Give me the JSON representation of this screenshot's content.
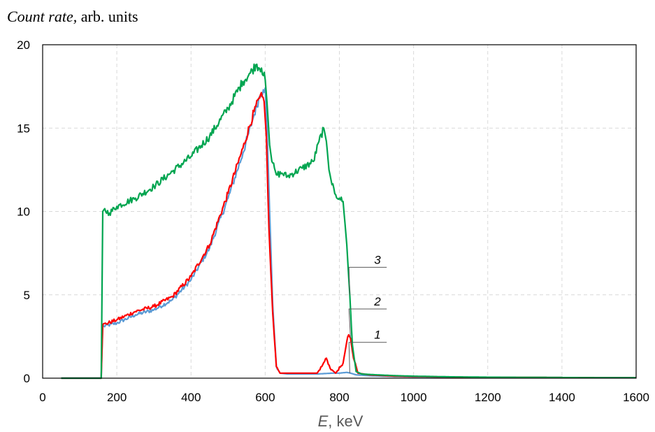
{
  "chart_data": {
    "type": "line",
    "ylabel_italic": "Count rate,",
    "ylabel_rest": " arb. units",
    "xlabel_italic": "E",
    "xlabel_rest": ", keV",
    "xlim": [
      0,
      1600
    ],
    "ylim": [
      0,
      20
    ],
    "xticks": [
      0,
      200,
      400,
      600,
      800,
      1000,
      1200,
      1400,
      1600
    ],
    "yticks": [
      0,
      5,
      10,
      15,
      20
    ],
    "grid": true,
    "series": [
      {
        "name": "1",
        "color": "#5B9BD5",
        "x": [
          50,
          158,
          162,
          200,
          250,
          300,
          350,
          400,
          450,
          500,
          540,
          570,
          585,
          595,
          600,
          605,
          612,
          620,
          630,
          640,
          660,
          700,
          740,
          780,
          800,
          820,
          830,
          845,
          880,
          950,
          1000,
          1100,
          1200,
          1300,
          1400,
          1500,
          1600
        ],
        "y": [
          0,
          0,
          3.1,
          3.3,
          3.8,
          4.1,
          4.7,
          5.9,
          7.8,
          10.8,
          13.5,
          15.8,
          16.9,
          17.3,
          17.4,
          15.0,
          10.0,
          4.5,
          0.7,
          0.3,
          0.25,
          0.25,
          0.25,
          0.3,
          0.3,
          0.35,
          0.3,
          0.2,
          0.15,
          0.1,
          0.08,
          0.06,
          0.05,
          0.04,
          0.04,
          0.03,
          0.03
        ]
      },
      {
        "name": "2",
        "color": "#FF0000",
        "x": [
          50,
          158,
          162,
          200,
          250,
          300,
          350,
          400,
          450,
          500,
          540,
          570,
          585,
          592,
          597,
          603,
          610,
          620,
          630,
          640,
          700,
          740,
          755,
          765,
          775,
          790,
          810,
          820,
          825,
          830,
          838,
          850,
          880,
          950,
          1000,
          1100,
          1200,
          1300,
          1400,
          1500,
          1600
        ],
        "y": [
          0,
          0,
          3.2,
          3.5,
          4.0,
          4.3,
          4.9,
          6.1,
          8.0,
          11.1,
          13.8,
          16.0,
          16.8,
          16.9,
          16.6,
          14.5,
          9.0,
          4.0,
          0.7,
          0.3,
          0.3,
          0.3,
          0.8,
          1.2,
          0.6,
          0.3,
          0.9,
          2.2,
          2.6,
          2.4,
          1.2,
          0.3,
          0.2,
          0.12,
          0.1,
          0.07,
          0.05,
          0.05,
          0.04,
          0.03,
          0.03
        ]
      },
      {
        "name": "3",
        "color": "#00A550",
        "x": [
          50,
          158,
          162,
          165,
          180,
          200,
          250,
          300,
          350,
          400,
          450,
          500,
          540,
          560,
          575,
          590,
          600,
          605,
          612,
          618,
          625,
          630,
          645,
          660,
          700,
          730,
          745,
          758,
          765,
          772,
          780,
          790,
          800,
          810,
          820,
          828,
          835,
          845,
          860,
          900,
          950,
          1000,
          1100,
          1200,
          1300,
          1400,
          1500,
          1600
        ],
        "y": [
          0,
          0,
          10.0,
          10.1,
          9.9,
          10.3,
          10.8,
          11.5,
          12.4,
          13.3,
          14.5,
          16.2,
          17.8,
          18.3,
          18.8,
          18.6,
          17.9,
          16.5,
          14.0,
          13.0,
          12.6,
          12.2,
          12.3,
          12.1,
          12.6,
          13.0,
          14.2,
          15.0,
          14.2,
          12.5,
          11.6,
          11.0,
          10.8,
          10.6,
          8.0,
          5.0,
          2.0,
          0.4,
          0.25,
          0.2,
          0.15,
          0.12,
          0.08,
          0.06,
          0.05,
          0.04,
          0.03,
          0.03
        ]
      }
    ],
    "curve_labels": [
      {
        "text": "1",
        "series": 0,
        "anchor_x": 828,
        "anchor_y": 0.3,
        "label_x": 905,
        "label_y": 2.15
      },
      {
        "text": "2",
        "series": 1,
        "anchor_x": 830,
        "anchor_y": 2.4,
        "label_x": 905,
        "label_y": 4.15
      },
      {
        "text": "3",
        "series": 2,
        "anchor_x": 828,
        "anchor_y": 5.0,
        "label_x": 905,
        "label_y": 6.65
      }
    ],
    "colors": {
      "axis": "#000000",
      "grid": "#D9D9D9",
      "leader": "#595959"
    }
  }
}
